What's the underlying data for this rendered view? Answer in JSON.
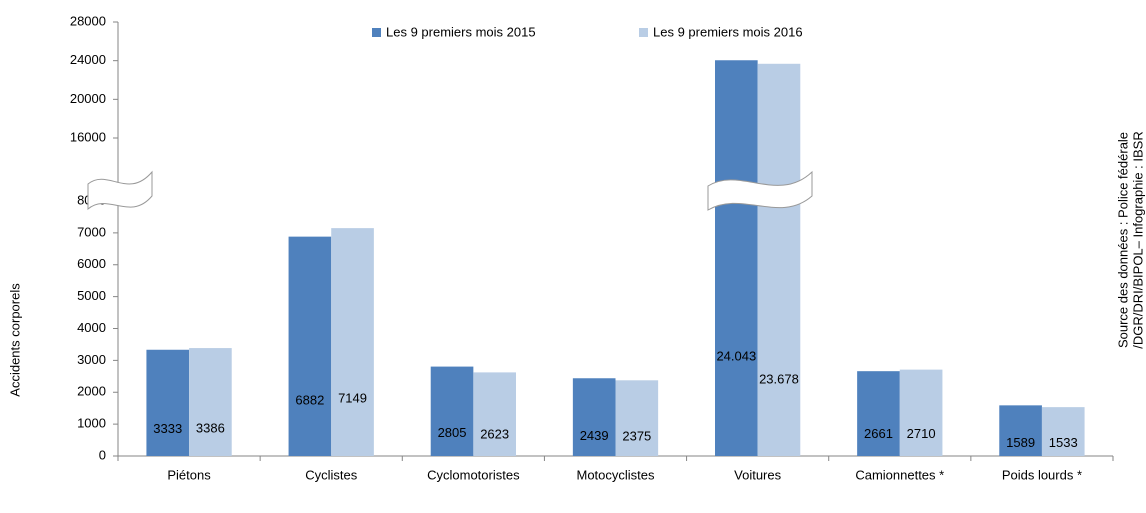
{
  "chart_data": {
    "type": "bar",
    "y_label": "Accidents corporels",
    "source": [
      "Source des données : Police fédérale",
      "/DGR/DRI/BIPOL– Infographie : IBSR"
    ],
    "categories": [
      "Piétons",
      "Cyclistes",
      "Cyclomotoristes",
      "Motocyclistes",
      "Voitures",
      "Camionnettes *",
      "Poids lourds *"
    ],
    "series": [
      {
        "name": "Les 9 premiers mois 2015",
        "color": "#4f81bd",
        "values": [
          3333,
          6882,
          2805,
          2439,
          24043,
          2661,
          1589
        ],
        "value_labels": [
          "3333",
          "6882",
          "2805",
          "2439",
          "24.043",
          "2661",
          "1589"
        ]
      },
      {
        "name": "Les 9 premiers mois 2016",
        "color": "#b9cde5",
        "values": [
          3386,
          7149,
          2623,
          2375,
          23678,
          2710,
          1533
        ],
        "value_labels": [
          "3386",
          "7149",
          "2623",
          "2375",
          "23.678",
          "2710",
          "1533"
        ]
      }
    ],
    "ylim": [
      0,
      28000
    ],
    "axis_break": [
      8000,
      16000
    ],
    "yticks": [
      0,
      1000,
      2000,
      3000,
      4000,
      5000,
      6000,
      7000,
      8000,
      16000,
      20000,
      24000,
      28000
    ],
    "legend": "top",
    "grid": false
  }
}
